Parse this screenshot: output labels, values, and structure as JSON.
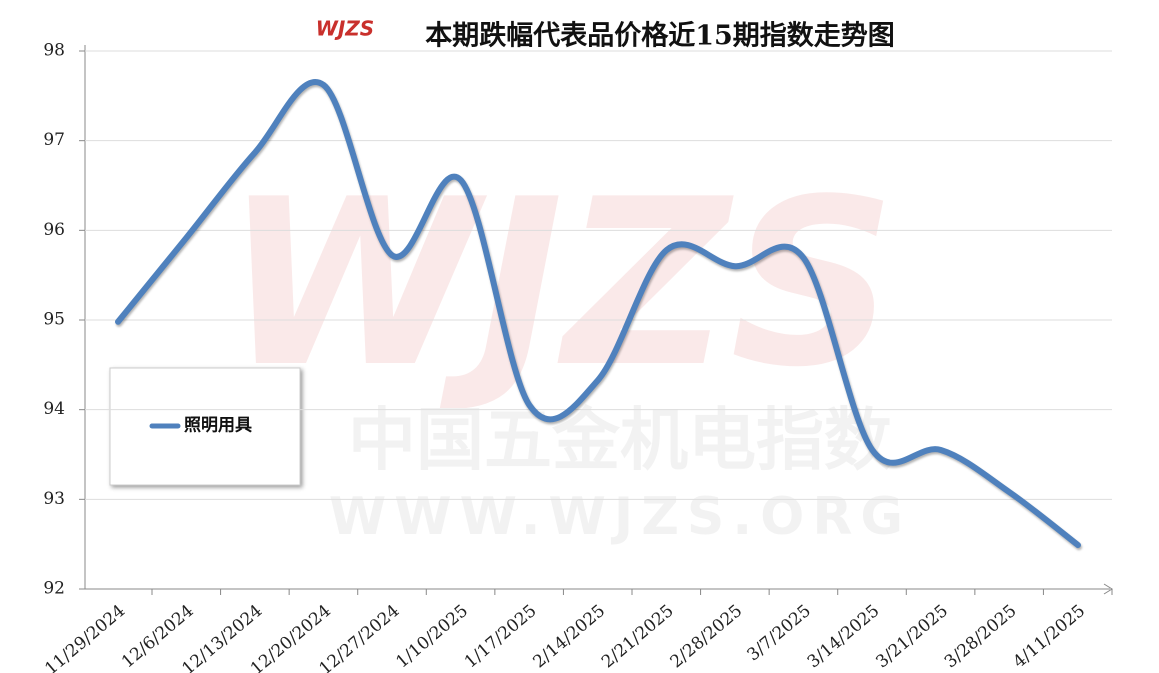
{
  "chart_data": {
    "type": "line",
    "title": "本期跌幅代表品价格近15期指数走势图",
    "logo": "WJZS",
    "watermark": [
      "WJZS",
      "中国五金机电指数",
      "WWW.WJZS.ORG"
    ],
    "categories": [
      "11/29/2024",
      "12/6/2024",
      "12/13/2024",
      "12/20/2024",
      "12/27/2024",
      "1/10/2025",
      "1/17/2025",
      "2/14/2025",
      "2/21/2025",
      "2/28/2025",
      "3/7/2025",
      "3/14/2025",
      "3/21/2025",
      "3/28/2025",
      "4/11/2025"
    ],
    "series": [
      {
        "name": "照明用具",
        "color": "#4f81bd",
        "values": [
          94.98,
          95.92,
          96.87,
          97.62,
          95.72,
          96.56,
          94.05,
          94.33,
          95.78,
          95.6,
          95.69,
          93.55,
          93.55,
          93.08,
          92.49
        ]
      }
    ],
    "ylim": [
      92,
      98
    ],
    "yticks": [
      92,
      93,
      94,
      95,
      96,
      97,
      98
    ],
    "grid": true,
    "legend": "left"
  }
}
